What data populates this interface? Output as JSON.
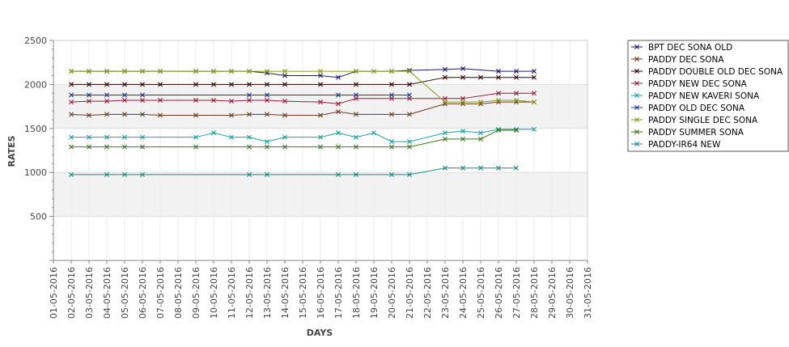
{
  "chart_data": {
    "type": "line",
    "title": "",
    "xlabel": "DAYS",
    "ylabel": "RATES",
    "ylim": [
      0,
      2500
    ],
    "yticks": [
      500,
      1000,
      1500,
      2000,
      2500
    ],
    "x_categories": [
      "01-05-2016",
      "02-05-2016",
      "03-05-2016",
      "04-05-2016",
      "05-05-2016",
      "06-05-2016",
      "07-05-2016",
      "08-05-2016",
      "09-05-2016",
      "10-05-2016",
      "11-05-2016",
      "12-05-2016",
      "13-05-2016",
      "14-05-2016",
      "15-05-2016",
      "16-05-2016",
      "17-05-2016",
      "18-05-2016",
      "19-05-2016",
      "20-05-2016",
      "21-05-2016",
      "22-05-2016",
      "23-05-2016",
      "24-05-2016",
      "25-05-2016",
      "26-05-2016",
      "27-05-2016",
      "28-05-2016",
      "29-05-2016",
      "30-05-2016",
      "31-05-2016"
    ],
    "legend_position": "right",
    "grid": true,
    "alternating_bands": true,
    "series": [
      {
        "name": "BPT DEC SONA OLD",
        "color": "#1a1a6a",
        "points": [
          [
            2,
            2150
          ],
          [
            3,
            2150
          ],
          [
            4,
            2150
          ],
          [
            5,
            2150
          ],
          [
            6,
            2150
          ],
          [
            7,
            2150
          ],
          [
            9,
            2150
          ],
          [
            10,
            2150
          ],
          [
            11,
            2150
          ],
          [
            12,
            2150
          ],
          [
            13,
            2130
          ],
          [
            14,
            2100
          ],
          [
            16,
            2100
          ],
          [
            17,
            2080
          ],
          [
            18,
            2150
          ],
          [
            20,
            2150
          ],
          [
            21,
            2160
          ],
          [
            23,
            2170
          ],
          [
            24,
            2180
          ],
          [
            26,
            2150
          ],
          [
            27,
            2150
          ],
          [
            28,
            2150
          ]
        ]
      },
      {
        "name": "PADDY DEC SONA",
        "color": "#6b3a1a",
        "points": [
          [
            2,
            1660
          ],
          [
            3,
            1650
          ],
          [
            4,
            1660
          ],
          [
            5,
            1660
          ],
          [
            6,
            1660
          ],
          [
            7,
            1650
          ],
          [
            9,
            1650
          ],
          [
            11,
            1650
          ],
          [
            12,
            1660
          ],
          [
            13,
            1660
          ],
          [
            14,
            1650
          ],
          [
            16,
            1650
          ],
          [
            17,
            1690
          ],
          [
            18,
            1660
          ],
          [
            20,
            1660
          ],
          [
            21,
            1660
          ],
          [
            23,
            1780
          ],
          [
            24,
            1780
          ],
          [
            25,
            1780
          ],
          [
            26,
            1800
          ],
          [
            27,
            1800
          ],
          [
            28,
            1800
          ]
        ]
      },
      {
        "name": "PADDY DOUBLE OLD DEC SONA",
        "color": "#300000",
        "points": [
          [
            2,
            2000
          ],
          [
            3,
            2000
          ],
          [
            4,
            2000
          ],
          [
            5,
            2000
          ],
          [
            6,
            2000
          ],
          [
            7,
            2000
          ],
          [
            9,
            2000
          ],
          [
            10,
            2000
          ],
          [
            11,
            2000
          ],
          [
            12,
            2000
          ],
          [
            13,
            2000
          ],
          [
            14,
            2000
          ],
          [
            16,
            2000
          ],
          [
            18,
            2000
          ],
          [
            20,
            2000
          ],
          [
            21,
            2000
          ],
          [
            23,
            2080
          ],
          [
            24,
            2080
          ],
          [
            25,
            2080
          ],
          [
            26,
            2080
          ],
          [
            27,
            2080
          ],
          [
            28,
            2080
          ]
        ]
      },
      {
        "name": "PADDY NEW DEC SONA",
        "color": "#9a1a3a",
        "points": [
          [
            2,
            1800
          ],
          [
            3,
            1810
          ],
          [
            4,
            1810
          ],
          [
            5,
            1820
          ],
          [
            6,
            1820
          ],
          [
            7,
            1820
          ],
          [
            9,
            1820
          ],
          [
            10,
            1820
          ],
          [
            11,
            1810
          ],
          [
            12,
            1820
          ],
          [
            13,
            1820
          ],
          [
            14,
            1810
          ],
          [
            16,
            1800
          ],
          [
            17,
            1780
          ],
          [
            18,
            1840
          ],
          [
            20,
            1840
          ],
          [
            21,
            1840
          ],
          [
            23,
            1840
          ],
          [
            24,
            1840
          ],
          [
            26,
            1900
          ],
          [
            27,
            1900
          ],
          [
            28,
            1900
          ]
        ]
      },
      {
        "name": "PADDY NEW KAVERI SONA",
        "color": "#1aa0a0",
        "points": [
          [
            2,
            1400
          ],
          [
            3,
            1400
          ],
          [
            4,
            1400
          ],
          [
            5,
            1400
          ],
          [
            6,
            1400
          ],
          [
            9,
            1400
          ],
          [
            10,
            1450
          ],
          [
            11,
            1400
          ],
          [
            12,
            1400
          ],
          [
            13,
            1350
          ],
          [
            14,
            1400
          ],
          [
            16,
            1400
          ],
          [
            17,
            1450
          ],
          [
            18,
            1400
          ],
          [
            19,
            1450
          ],
          [
            20,
            1350
          ],
          [
            21,
            1350
          ],
          [
            23,
            1450
          ],
          [
            24,
            1470
          ],
          [
            25,
            1450
          ],
          [
            26,
            1490
          ],
          [
            27,
            1490
          ],
          [
            28,
            1490
          ]
        ]
      },
      {
        "name": "PADDY OLD DEC SONA",
        "color": "#1a3a9a",
        "points": [
          [
            2,
            1880
          ],
          [
            3,
            1880
          ],
          [
            4,
            1880
          ],
          [
            5,
            1880
          ],
          [
            6,
            1880
          ],
          [
            12,
            1880
          ],
          [
            13,
            1880
          ],
          [
            17,
            1880
          ],
          [
            18,
            1880
          ],
          [
            20,
            1880
          ],
          [
            21,
            1880
          ]
        ]
      },
      {
        "name": "PADDY SINGLE DEC SONA",
        "color": "#8a9a1a",
        "points": [
          [
            2,
            2150
          ],
          [
            3,
            2150
          ],
          [
            4,
            2150
          ],
          [
            5,
            2150
          ],
          [
            6,
            2150
          ],
          [
            7,
            2150
          ],
          [
            9,
            2150
          ],
          [
            10,
            2150
          ],
          [
            11,
            2150
          ],
          [
            12,
            2150
          ],
          [
            13,
            2150
          ],
          [
            14,
            2150
          ],
          [
            16,
            2150
          ],
          [
            18,
            2150
          ],
          [
            19,
            2150
          ],
          [
            20,
            2150
          ],
          [
            21,
            2150
          ],
          [
            23,
            1800
          ],
          [
            24,
            1800
          ],
          [
            25,
            1800
          ],
          [
            26,
            1820
          ],
          [
            27,
            1820
          ],
          [
            28,
            1800
          ]
        ]
      },
      {
        "name": "PADDY SUMMER SONA",
        "color": "#3a7a1a",
        "points": [
          [
            2,
            1290
          ],
          [
            3,
            1290
          ],
          [
            4,
            1290
          ],
          [
            5,
            1290
          ],
          [
            6,
            1290
          ],
          [
            9,
            1290
          ],
          [
            12,
            1290
          ],
          [
            13,
            1290
          ],
          [
            14,
            1290
          ],
          [
            16,
            1290
          ],
          [
            17,
            1290
          ],
          [
            18,
            1290
          ],
          [
            20,
            1290
          ],
          [
            21,
            1290
          ],
          [
            23,
            1380
          ],
          [
            24,
            1380
          ],
          [
            25,
            1380
          ],
          [
            26,
            1480
          ],
          [
            27,
            1480
          ]
        ]
      },
      {
        "name": "PADDY-IR64 NEW",
        "color": "#1a8a8a",
        "points": [
          [
            2,
            975
          ],
          [
            4,
            975
          ],
          [
            5,
            975
          ],
          [
            6,
            975
          ],
          [
            12,
            975
          ],
          [
            13,
            975
          ],
          [
            17,
            975
          ],
          [
            18,
            975
          ],
          [
            20,
            975
          ],
          [
            21,
            975
          ],
          [
            23,
            1050
          ],
          [
            24,
            1050
          ],
          [
            25,
            1050
          ],
          [
            26,
            1050
          ],
          [
            27,
            1050
          ]
        ]
      }
    ]
  }
}
